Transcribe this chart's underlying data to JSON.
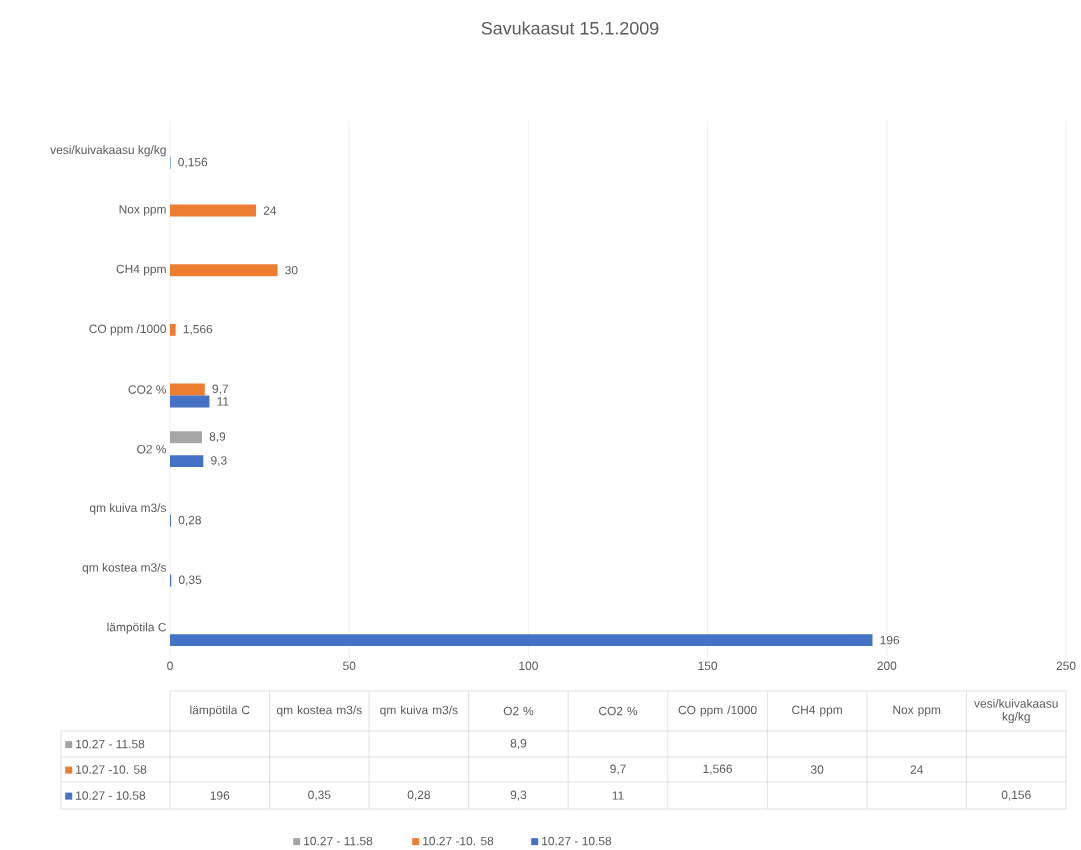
{
  "chart_data": {
    "type": "bar",
    "orientation": "horizontal",
    "title": "Savukaasut 15.1.2009",
    "categories": [
      "vesi/kuivakaasu kg/kg",
      "Nox ppm",
      "CH4 ppm",
      "CO ppm /1000",
      "CO2 %",
      "O2 %",
      "qm kuiva m3/s",
      "qm kostea m3/s",
      "lämpötila C"
    ],
    "series": [
      {
        "name": "10.27 - 11.58",
        "color": "#a5a5a5",
        "values": [
          null,
          null,
          null,
          null,
          null,
          8.9,
          null,
          null,
          null
        ],
        "value_labels": [
          null,
          null,
          null,
          null,
          null,
          "8,9",
          null,
          null,
          null
        ]
      },
      {
        "name": "10.27 -10. 58",
        "color": "#ed7d31",
        "values": [
          null,
          24,
          30,
          1.566,
          9.7,
          null,
          null,
          null,
          null
        ],
        "value_labels": [
          null,
          "24",
          "30",
          "1,566",
          "9,7",
          null,
          null,
          null,
          null
        ]
      },
      {
        "name": "10.27 - 10.58",
        "color": "#4472c4",
        "values": [
          0.156,
          null,
          null,
          null,
          11,
          9.3,
          0.28,
          0.35,
          196
        ],
        "value_labels": [
          "0,156",
          null,
          null,
          null,
          "11",
          "9,3",
          "0,28",
          "0,35",
          "196"
        ]
      }
    ],
    "xlim": [
      0,
      250
    ],
    "xticks": [
      0,
      50,
      100,
      150,
      200,
      250
    ],
    "grid": "x",
    "legend": "bottom"
  }
}
